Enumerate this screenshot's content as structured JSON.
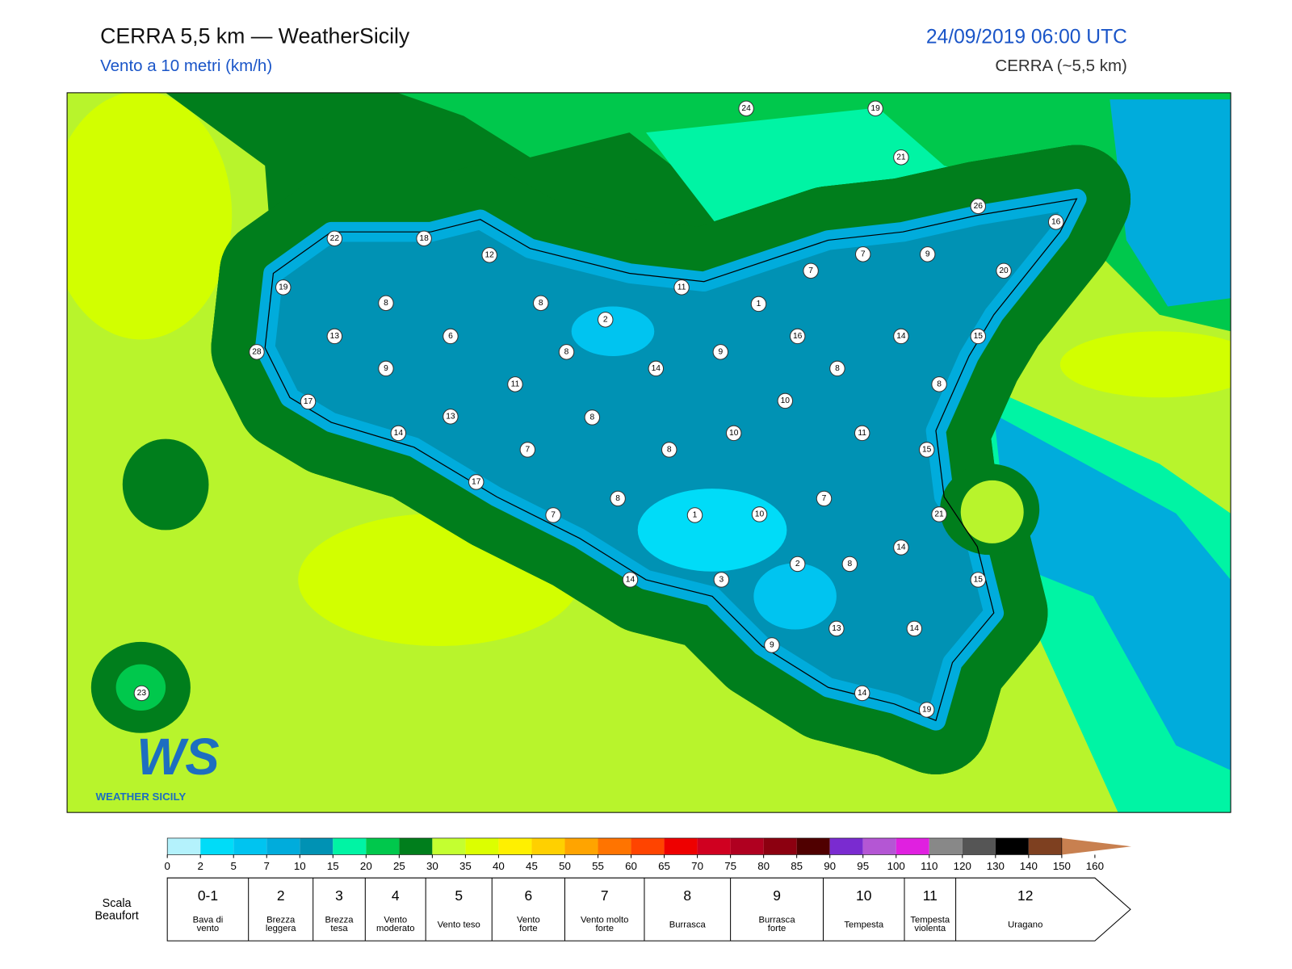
{
  "header": {
    "title": "CERRA 5,5 km — WeatherSicily",
    "subtitle": "Vento a 10 metri (km/h)",
    "datetime": "24/09/2019 06:00 UTC",
    "model": "CERRA (~5,5 km)"
  },
  "stations": [
    24,
    19,
    21,
    26,
    16,
    22,
    18,
    12,
    19,
    7,
    9,
    7,
    20,
    11,
    1,
    8,
    8,
    2,
    13,
    6,
    16,
    14,
    15,
    28,
    9,
    8,
    9,
    14,
    8,
    8,
    11,
    17,
    10,
    13,
    8,
    14,
    10,
    11,
    7,
    8,
    15,
    17,
    7,
    8,
    7,
    1,
    10,
    21,
    14,
    2,
    8,
    14,
    3,
    15,
    13,
    14,
    9,
    23,
    14,
    19
  ],
  "logo": {
    "mark": "WS",
    "name": "WEATHER SICILY"
  },
  "legend": {
    "ticks": [
      0,
      2,
      5,
      7,
      10,
      15,
      20,
      25,
      30,
      35,
      40,
      45,
      50,
      55,
      60,
      65,
      70,
      75,
      80,
      85,
      90,
      95,
      100,
      110,
      120,
      130,
      140,
      150,
      160
    ],
    "colors": [
      "#b4f2fc",
      "#00dcf8",
      "#00c4f0",
      "#00acdc",
      "#0092b4",
      "#00f4a4",
      "#00c84c",
      "#007e1c",
      "#c4ff30",
      "#dcff00",
      "#fff000",
      "#ffd000",
      "#ffa400",
      "#ff7400",
      "#ff4400",
      "#ee0000",
      "#d00020",
      "#b00020",
      "#8c0010",
      "#500000",
      "#7a2bd0",
      "#b456d4",
      "#e020e0",
      "#888888",
      "#555555",
      "#000000",
      "#7e4020",
      "#c88050"
    ]
  },
  "beaufort": {
    "label": "Scala Beaufort",
    "levels": [
      {
        "force": "0-1",
        "name": "Bava di vento"
      },
      {
        "force": "2",
        "name": "Brezza leggera"
      },
      {
        "force": "3",
        "name": "Brezza tesa"
      },
      {
        "force": "4",
        "name": "Vento moderato"
      },
      {
        "force": "5",
        "name": "Vento teso"
      },
      {
        "force": "6",
        "name": "Vento forte"
      },
      {
        "force": "7",
        "name": "Vento molto forte"
      },
      {
        "force": "8",
        "name": "Burrasca"
      },
      {
        "force": "9",
        "name": "Burrasca forte"
      },
      {
        "force": "10",
        "name": "Tempesta"
      },
      {
        "force": "11",
        "name": "Tempesta violenta"
      },
      {
        "force": "12",
        "name": "Uragano"
      }
    ]
  }
}
